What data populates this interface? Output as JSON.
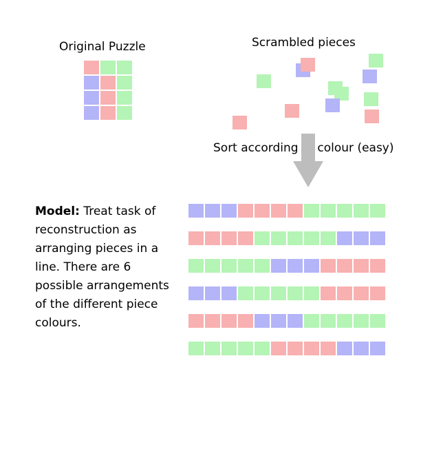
{
  "colors": {
    "pink": "#f8b0b0",
    "blue": "#b4b4f8",
    "green": "#b4f4b4",
    "arrow": "#bdbdbd"
  },
  "labels": {
    "original": "Original Puzzle",
    "scrambled": "Scrambled pieces",
    "sort": "Sort according to colour (easy)",
    "model_bold": "Model:",
    "model_text": " Treat task of reconstruction as arranging pieces in a line. There are 6 possible arrangements of the different piece colours."
  },
  "original_grid": [
    [
      "pink",
      "green",
      "green"
    ],
    [
      "blue",
      "pink",
      "green"
    ],
    [
      "blue",
      "pink",
      "green"
    ],
    [
      "blue",
      "pink",
      "green"
    ]
  ],
  "scrambled_pieces": [
    {
      "color": "blue"
    },
    {
      "color": "pink"
    },
    {
      "color": "green"
    },
    {
      "color": "blue"
    },
    {
      "color": "green"
    },
    {
      "color": "green"
    },
    {
      "color": "green"
    },
    {
      "color": "blue"
    },
    {
      "color": "pink"
    },
    {
      "color": "green"
    },
    {
      "color": "pink"
    },
    {
      "color": "pink"
    }
  ],
  "arrangements": [
    [
      "blue",
      "blue",
      "blue",
      "pink",
      "pink",
      "pink",
      "pink",
      "green",
      "green",
      "green",
      "green",
      "green"
    ],
    [
      "pink",
      "pink",
      "pink",
      "pink",
      "green",
      "green",
      "green",
      "green",
      "green",
      "blue",
      "blue",
      "blue"
    ],
    [
      "green",
      "green",
      "green",
      "green",
      "green",
      "blue",
      "blue",
      "blue",
      "pink",
      "pink",
      "pink",
      "pink"
    ],
    [
      "blue",
      "blue",
      "blue",
      "green",
      "green",
      "green",
      "green",
      "green",
      "pink",
      "pink",
      "pink",
      "pink"
    ],
    [
      "pink",
      "pink",
      "pink",
      "pink",
      "blue",
      "blue",
      "blue",
      "green",
      "green",
      "green",
      "green",
      "green"
    ],
    [
      "green",
      "green",
      "green",
      "green",
      "green",
      "pink",
      "pink",
      "pink",
      "pink",
      "blue",
      "blue",
      "blue"
    ]
  ]
}
